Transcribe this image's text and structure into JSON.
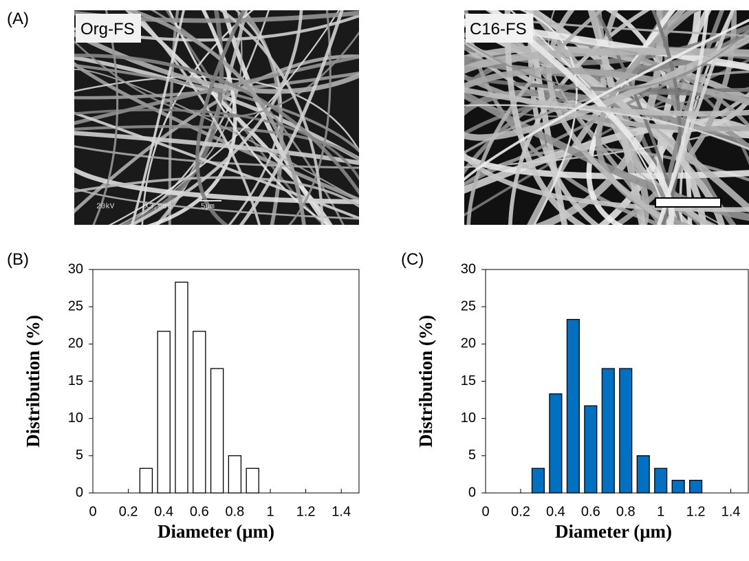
{
  "panel_labels": [
    "(A)",
    "(B)",
    "(C)"
  ],
  "images": [
    {
      "label": "Org-FS",
      "info": [
        "20kV",
        "X3,000",
        "5μm"
      ]
    },
    {
      "label": "C16-FS"
    }
  ],
  "chart_data": [
    {
      "type": "bar",
      "x": [
        0.3,
        0.4,
        0.5,
        0.6,
        0.7,
        0.8,
        0.9
      ],
      "values": [
        3.3,
        21.7,
        28.3,
        21.7,
        16.7,
        5,
        3.3
      ],
      "color": "#ffffff",
      "edgecolor": "#000000",
      "xlim": [
        0,
        1.5
      ],
      "ylim": [
        0,
        30
      ],
      "xticks": [
        0,
        0.2,
        0.4,
        0.6,
        0.8,
        1,
        1.2,
        1.4
      ],
      "yticks": [
        0,
        5,
        10,
        15,
        20,
        25,
        30
      ],
      "xlabel": "Diameter (μm)",
      "ylabel": "Distribution (%)"
    },
    {
      "type": "bar",
      "x": [
        0.3,
        0.4,
        0.5,
        0.6,
        0.7,
        0.8,
        0.9,
        1.0,
        1.1,
        1.2
      ],
      "values": [
        3.3,
        13.3,
        23.3,
        11.7,
        16.7,
        16.7,
        5,
        3.3,
        1.7,
        1.7
      ],
      "color": "#0070c0",
      "edgecolor": "#000000",
      "xlim": [
        0,
        1.5
      ],
      "ylim": [
        0,
        30
      ],
      "xticks": [
        0,
        0.2,
        0.4,
        0.6,
        0.8,
        1,
        1.2,
        1.4
      ],
      "yticks": [
        0,
        5,
        10,
        15,
        20,
        25,
        30
      ],
      "xlabel": "Diameter (μm)",
      "ylabel": "Distribution (%)"
    }
  ]
}
